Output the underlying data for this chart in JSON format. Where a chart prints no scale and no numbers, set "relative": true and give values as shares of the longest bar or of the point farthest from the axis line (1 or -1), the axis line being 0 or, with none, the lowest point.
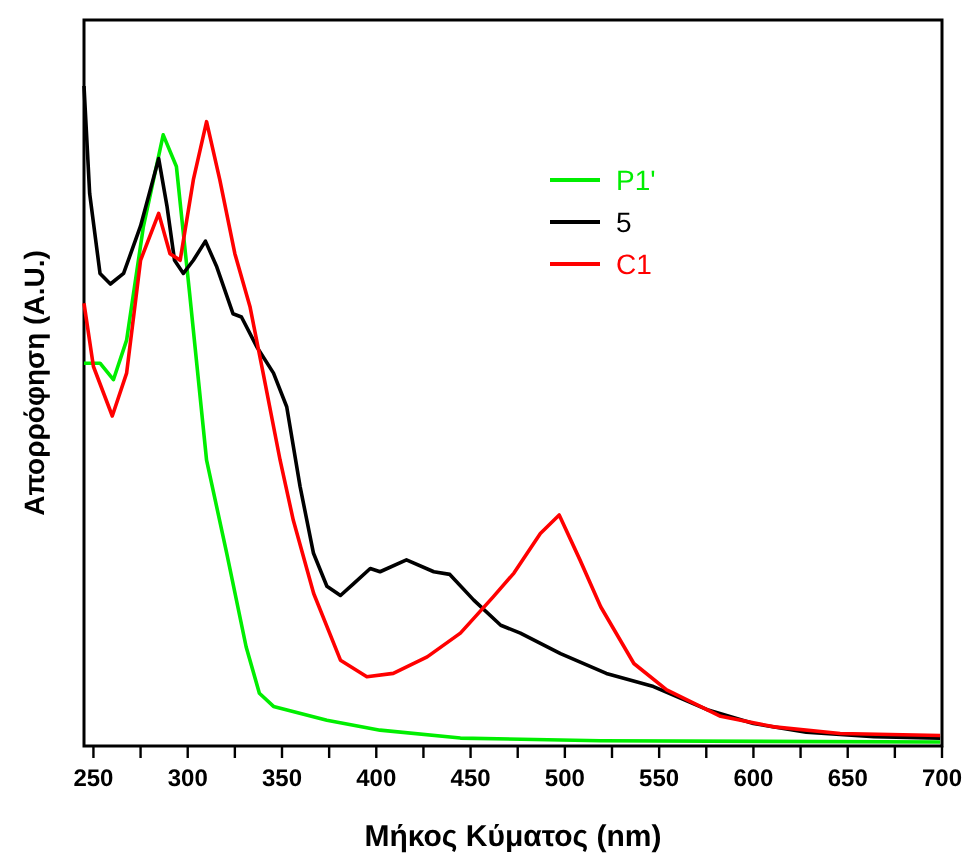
{
  "chart_data": {
    "type": "line",
    "xlabel": "Μήκος Κύματος (nm)",
    "ylabel": "Απορρόφηση (A.U.)",
    "relative": true,
    "tick_labels": "x",
    "grid": false,
    "legend": "top right",
    "marker": "none",
    "line_style": "solid",
    "xlim": [
      245,
      700
    ],
    "xticks": [
      250,
      {
        "value": 275,
        "label": null
      },
      300,
      {
        "value": 325,
        "label": null
      },
      350,
      {
        "value": 375,
        "label": null
      },
      400,
      {
        "value": 425,
        "label": null
      },
      450,
      {
        "value": 475,
        "label": null
      },
      500,
      {
        "value": 525,
        "label": null
      },
      550,
      {
        "value": 575,
        "label": null
      },
      600,
      {
        "value": 625,
        "label": null
      },
      650,
      {
        "value": 675,
        "label": null
      },
      700
    ],
    "series": [
      {
        "name": "P1'",
        "color": "#00ee00",
        "x": [
          245,
          253.5,
          260.6,
          267.6,
          276.5,
          287,
          294,
          301,
          310,
          320.7,
          331,
          338,
          345.5,
          373.8,
          402,
          444.6,
          519,
          699
        ],
        "values": [
          0.58,
          0.58,
          0.555,
          0.615,
          0.787,
          0.926,
          0.878,
          0.686,
          0.433,
          0.292,
          0.15,
          0.08,
          0.06,
          0.039,
          0.024,
          0.012,
          0.008,
          0.006
        ]
      },
      {
        "name": "5",
        "color": "#000000",
        "x": [
          245,
          248,
          253.5,
          259,
          266,
          275,
          284.6,
          289,
          293,
          297.7,
          303,
          309.4,
          315.4,
          324,
          328.5,
          336.6,
          345.5,
          352.5,
          359.6,
          366.7,
          373.8,
          381,
          388,
          396.8,
          402,
          416,
          430.5,
          439,
          451.7,
          466,
          476.4,
          497.7,
          522,
          547,
          575.5,
          600,
          628,
          664,
          699
        ],
        "values": [
          1.0,
          0.837,
          0.716,
          0.7,
          0.716,
          0.788,
          0.89,
          0.818,
          0.736,
          0.716,
          0.736,
          0.765,
          0.726,
          0.655,
          0.65,
          0.605,
          0.565,
          0.514,
          0.393,
          0.292,
          0.242,
          0.228,
          0.246,
          0.269,
          0.264,
          0.282,
          0.264,
          0.26,
          0.221,
          0.183,
          0.171,
          0.14,
          0.11,
          0.09,
          0.055,
          0.034,
          0.021,
          0.014,
          0.012
        ]
      },
      {
        "name": "C1",
        "color": "#ff0000",
        "x": [
          245,
          250,
          260,
          267.6,
          275,
          284.6,
          290.6,
          296,
          303,
          310,
          317,
          325,
          333,
          340,
          349,
          356,
          366.8,
          381,
          395,
          409,
          427,
          444.6,
          462,
          473,
          487,
          497,
          508,
          519,
          536.6,
          554,
          582.6,
          611,
          646,
          699
        ],
        "values": [
          0.671,
          0.575,
          0.5,
          0.565,
          0.736,
          0.807,
          0.746,
          0.736,
          0.858,
          0.946,
          0.858,
          0.746,
          0.666,
          0.565,
          0.433,
          0.342,
          0.231,
          0.13,
          0.105,
          0.11,
          0.135,
          0.171,
          0.226,
          0.262,
          0.322,
          0.35,
          0.282,
          0.211,
          0.125,
          0.085,
          0.045,
          0.029,
          0.019,
          0.016
        ]
      }
    ]
  }
}
